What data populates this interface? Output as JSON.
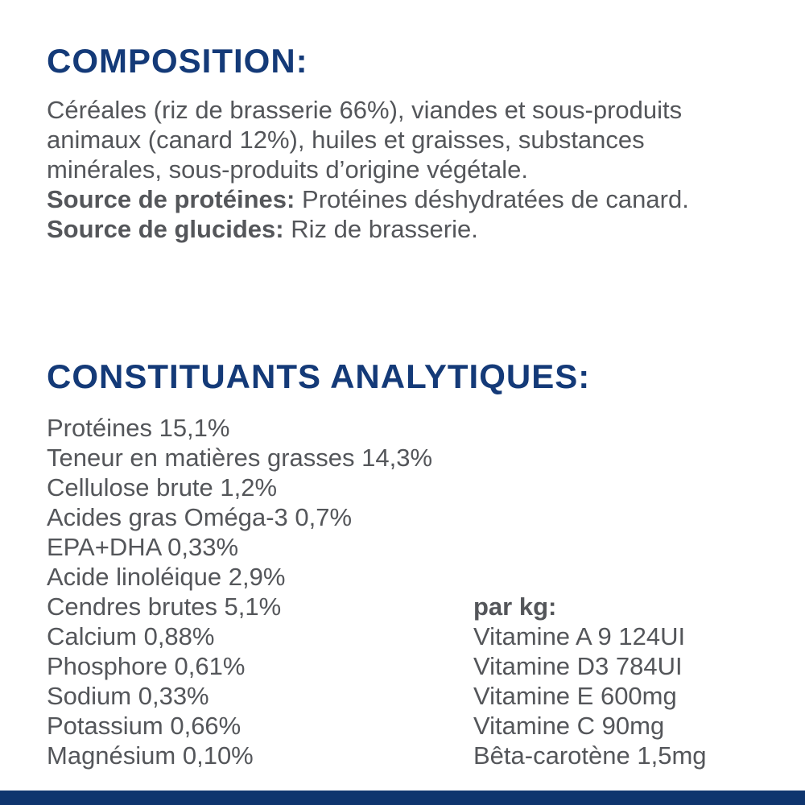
{
  "page": {
    "background": "#ffffff",
    "heading_color": "#143a78",
    "text_color": "#54565a",
    "bottom_bar_color": "#0f356e"
  },
  "composition": {
    "heading": "COMPOSITION:",
    "body_lines": [
      "Céréales (riz de brasserie 66%), viandes et sous-produits",
      "animaux (canard 12%), huiles et graisses, substances",
      "minérales, sous-produits d’origine végétale."
    ],
    "protein_source_label": "Source de protéines:",
    "protein_source_value": "Protéines déshydratées de canard.",
    "carb_source_label": "Source de glucides:",
    "carb_source_value": "Riz de brasserie."
  },
  "analytical": {
    "heading": "CONSTITUANTS ANALYTIQUES:",
    "constituents": [
      "Protéines 15,1%",
      "Teneur en matières grasses 14,3%",
      "Cellulose brute 1,2%",
      "Acides gras Oméga-3 0,7%",
      "EPA+DHA 0,33%",
      "Acide linoléique 2,9%",
      "Cendres brutes 5,1%",
      "Calcium 0,88%",
      "Phosphore 0,61%",
      "Sodium 0,33%",
      "Potassium 0,66%",
      "Magnésium 0,10%"
    ],
    "per_kg_label": "par kg:",
    "per_kg_items": [
      "Vitamine A 9 124UI",
      "Vitamine D3 784UI",
      "Vitamine E 600mg",
      "Vitamine C 90mg",
      "Bêta-carotène 1,5mg"
    ]
  }
}
